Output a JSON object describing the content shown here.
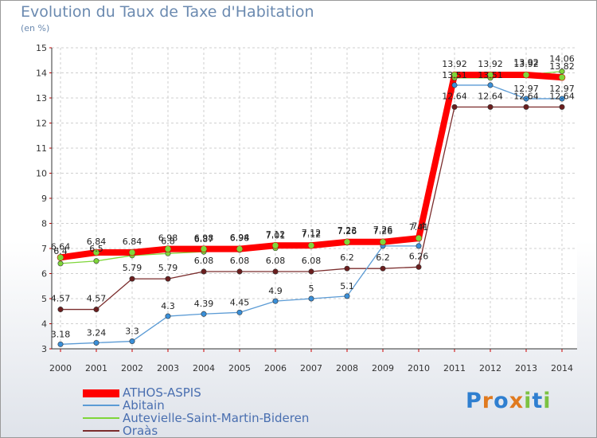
{
  "title": "Evolution du Taux de Taxe d'Habitation",
  "unit": "(en %)",
  "logo": "Proxiti",
  "chart_data": {
    "type": "line",
    "x": [
      "2000",
      "2001",
      "2002",
      "2003",
      "2004",
      "2005",
      "2006",
      "2007",
      "2008",
      "2009",
      "2010",
      "2011",
      "2012",
      "2013",
      "2014"
    ],
    "ylim": [
      3,
      15
    ],
    "yticks": [
      3,
      4,
      5,
      6,
      7,
      8,
      9,
      10,
      11,
      12,
      13,
      14,
      15
    ],
    "grid": true,
    "legend_placement": "bottom-left",
    "series": [
      {
        "name": "ATHOS-ASPIS",
        "color": "#ff0000",
        "values": [
          6.64,
          6.84,
          6.84,
          6.98,
          6.98,
          6.98,
          7.12,
          7.12,
          7.26,
          7.26,
          7.41,
          13.92,
          13.92,
          13.92,
          13.82
        ],
        "labels": [
          "6.64",
          "6.84",
          "6.84",
          "6.98",
          "6.98",
          "6.98",
          "7.12",
          "7.12",
          "7.26",
          "7.26",
          "7.41",
          "13.92",
          "13.92",
          "13.92",
          "13.82"
        ]
      },
      {
        "name": "Abitain",
        "color": "#5b9bd5",
        "values": [
          3.18,
          3.24,
          3.3,
          4.3,
          4.39,
          4.45,
          4.9,
          5.0,
          5.1,
          7.1,
          7.1,
          13.51,
          13.51,
          12.97,
          12.97
        ],
        "labels": [
          "3.18",
          "3.24",
          "3.3",
          "4.3",
          "4.39",
          "4.45",
          "4.9",
          "5",
          "5.1",
          "",
          "",
          "13.51",
          "13.51",
          "12.97",
          "12.97"
        ]
      },
      {
        "name": "Autevielle-Saint-Martin-Bideren",
        "color": "#7fd63a",
        "values": [
          6.4,
          6.5,
          6.72,
          6.8,
          6.87,
          6.94,
          7.01,
          7.12,
          7.23,
          7.26,
          7.4,
          13.8,
          13.8,
          13.92,
          14.06
        ],
        "labels": [
          "6.4",
          "6.5",
          "",
          "6.8",
          "6.87",
          "6.94",
          "7.01",
          "7.12",
          "7.23",
          "7.26",
          "7.4",
          "",
          "",
          "13.92",
          "14.06"
        ]
      },
      {
        "name": "Oraàs",
        "color": "#7b2d2d",
        "values": [
          4.57,
          4.57,
          5.79,
          5.79,
          6.08,
          6.08,
          6.08,
          6.08,
          6.2,
          6.2,
          6.26,
          12.64,
          12.64,
          12.64,
          12.64
        ],
        "labels": [
          "4.57",
          "4.57",
          "5.79",
          "5.79",
          "6.08",
          "6.08",
          "6.08",
          "6.08",
          "6.2",
          "6.2",
          "6.26",
          "12.64",
          "12.64",
          "12.64",
          "12.64"
        ]
      }
    ]
  }
}
